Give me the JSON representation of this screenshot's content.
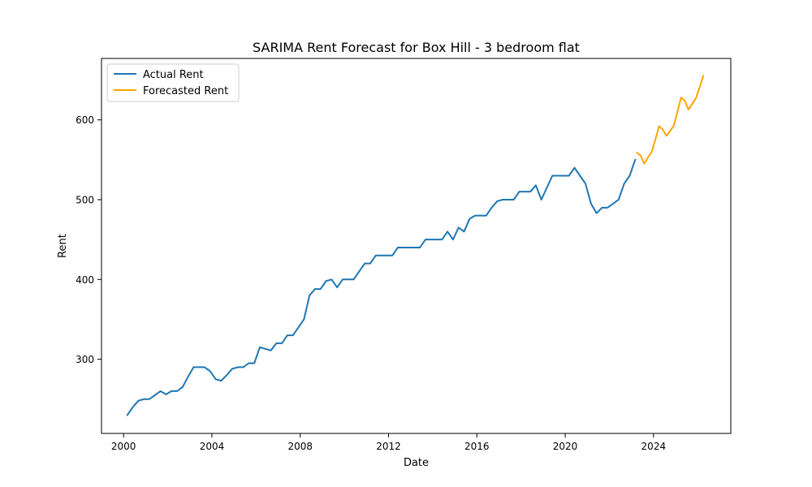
{
  "chart_data": {
    "type": "line",
    "title": "SARIMA Rent Forecast for Box Hill - 3 bedroom flat",
    "xlabel": "Date",
    "ylabel": "Rent",
    "xlim": [
      1999.0,
      2027.5
    ],
    "ylim": [
      207,
      677
    ],
    "x_ticks": [
      2000,
      2004,
      2008,
      2012,
      2016,
      2020,
      2024
    ],
    "x_tick_labels": [
      "2000",
      "2004",
      "2008",
      "2012",
      "2016",
      "2020",
      "2024"
    ],
    "y_ticks": [
      300,
      400,
      500,
      600
    ],
    "y_tick_labels": [
      "300",
      "400",
      "500",
      "600"
    ],
    "grid": false,
    "legend_position": "top-left",
    "series": [
      {
        "name": "Actual Rent",
        "color": "#1f77b4",
        "x": [
          2000.17,
          2000.42,
          2000.67,
          2000.92,
          2001.17,
          2001.42,
          2001.67,
          2001.92,
          2002.17,
          2002.42,
          2002.67,
          2002.92,
          2003.17,
          2003.42,
          2003.67,
          2003.92,
          2004.17,
          2004.42,
          2004.67,
          2004.92,
          2005.17,
          2005.42,
          2005.67,
          2005.92,
          2006.17,
          2006.42,
          2006.67,
          2006.92,
          2007.17,
          2007.42,
          2007.67,
          2007.92,
          2008.17,
          2008.42,
          2008.67,
          2008.92,
          2009.17,
          2009.42,
          2009.67,
          2009.92,
          2010.17,
          2010.42,
          2010.67,
          2010.92,
          2011.17,
          2011.42,
          2011.67,
          2011.92,
          2012.17,
          2012.42,
          2012.67,
          2012.92,
          2013.17,
          2013.42,
          2013.67,
          2013.92,
          2014.17,
          2014.42,
          2014.67,
          2014.92,
          2015.17,
          2015.42,
          2015.67,
          2015.92,
          2016.17,
          2016.42,
          2016.67,
          2016.92,
          2017.17,
          2017.42,
          2017.67,
          2017.92,
          2018.17,
          2018.42,
          2018.67,
          2018.92,
          2019.17,
          2019.42,
          2019.67,
          2019.92,
          2020.17,
          2020.42,
          2020.67,
          2020.92,
          2021.17,
          2021.42,
          2021.67,
          2021.92,
          2022.17,
          2022.42,
          2022.67,
          2022.92,
          2023.17
        ],
        "values": [
          230,
          240,
          248,
          250,
          250,
          255,
          260,
          256,
          260,
          260,
          265,
          278,
          290,
          290,
          290,
          285,
          275,
          273,
          280,
          288,
          290,
          290,
          295,
          295,
          315,
          313,
          311,
          320,
          320,
          330,
          330,
          340,
          350,
          380,
          388,
          388,
          398,
          400,
          390,
          400,
          400,
          400,
          410,
          420,
          420,
          430,
          430,
          430,
          430,
          440,
          440,
          440,
          440,
          440,
          450,
          450,
          450,
          450,
          460,
          450,
          465,
          460,
          476,
          480,
          480,
          480,
          490,
          498,
          500,
          500,
          500,
          510,
          510,
          510,
          518,
          500,
          515,
          530,
          530,
          530,
          530,
          540,
          530,
          520,
          495,
          483,
          490,
          490,
          495,
          500,
          520,
          530,
          550
        ]
      },
      {
        "name": "Forecasted Rent",
        "color": "#ffa500",
        "x": [
          2023.25,
          2023.42,
          2023.58,
          2023.75,
          2023.92,
          2024.08,
          2024.25,
          2024.42,
          2024.58,
          2024.75,
          2024.92,
          2025.08,
          2025.25,
          2025.42,
          2025.58,
          2025.75,
          2025.92,
          2026.08,
          2026.25
        ],
        "values": [
          559,
          555,
          545,
          553,
          560,
          575,
          592,
          588,
          580,
          586,
          593,
          610,
          628,
          624,
          613,
          620,
          627,
          640,
          655
        ]
      }
    ]
  }
}
